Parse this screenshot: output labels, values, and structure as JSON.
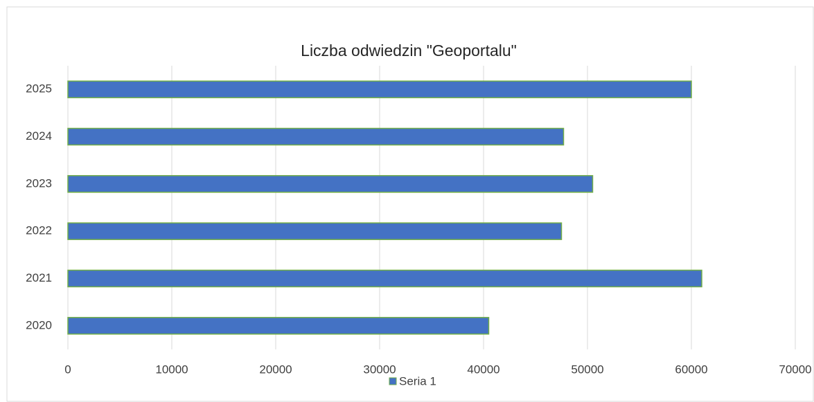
{
  "chart_data": {
    "type": "bar",
    "orientation": "horizontal",
    "title": "Liczba odwiedzin \"Geoportalu\"",
    "categories": [
      "2020",
      "2021",
      "2022",
      "2023",
      "2024",
      "2025"
    ],
    "series": [
      {
        "name": "Seria 1",
        "color": "#4472c4",
        "edge_color": "#70ad47",
        "values": [
          40500,
          61000,
          47500,
          50500,
          47700,
          60000
        ]
      }
    ],
    "xlim": [
      0,
      70000
    ],
    "xticks": [
      0,
      10000,
      20000,
      30000,
      40000,
      50000,
      60000,
      70000
    ],
    "grid": true,
    "legend": "bottom"
  }
}
